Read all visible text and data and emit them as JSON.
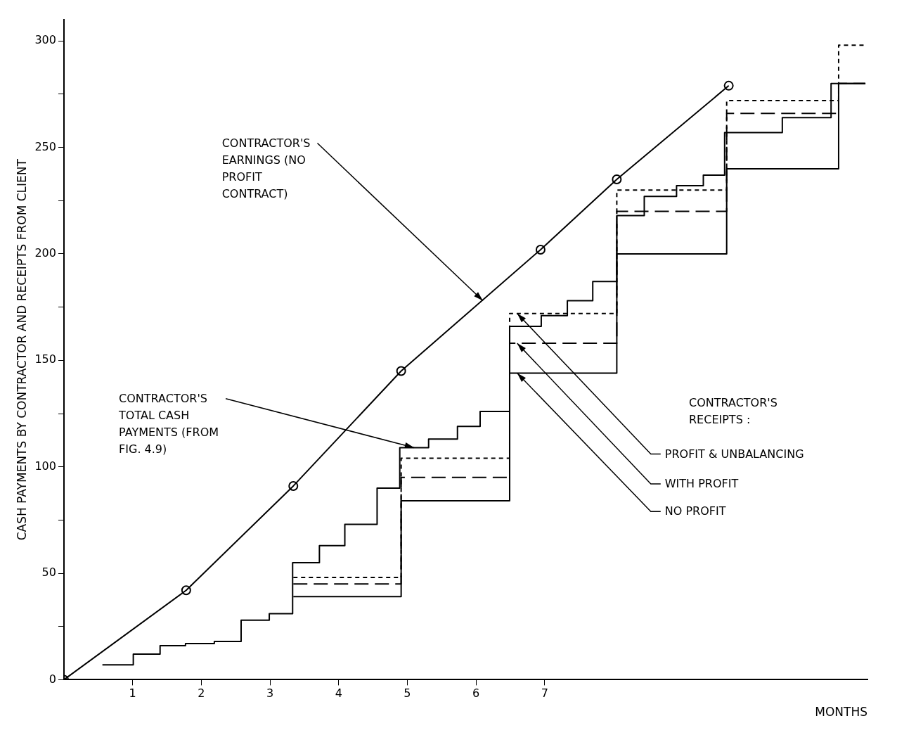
{
  "chart_data": {
    "type": "step",
    "xlabel": "MONTHS",
    "ylabel": "CASH PAYMENTS BY CONTRACTOR AND RECEIPTS FROM CLIENT",
    "legend_title": "CONTRACTOR'S RECEIPTS :",
    "xlim": [
      0,
      11.7
    ],
    "ylim": [
      0,
      310
    ],
    "xticks": [
      1,
      2,
      3,
      4,
      5,
      6,
      7
    ],
    "yticks": [
      0,
      {
        "value": 25,
        "label": null
      },
      50,
      {
        "value": 75,
        "label": null
      },
      100,
      {
        "value": 125,
        "label": null
      },
      150,
      {
        "value": 175,
        "label": null
      },
      200,
      {
        "value": 225,
        "label": null
      },
      250,
      {
        "value": 275,
        "label": null
      },
      300
    ],
    "grid": false,
    "marker": "none",
    "annotations": [
      {
        "text": "CONTRACTOR'S EARNINGS (NO PROFIT CONTRACT)",
        "x": 6.1,
        "y": 178
      },
      {
        "text": "CONTRACTOR'S TOTAL CASH PAYMENTS (FROM FIG. 4.9)",
        "x": 5.1,
        "y": 109
      },
      {
        "text": "PROFIT & UNBALANCING",
        "x": 6.6,
        "y": 172
      },
      {
        "text": "WITH PROFIT",
        "x": 6.6,
        "y": 158
      },
      {
        "text": "NO PROFIT",
        "x": 6.6,
        "y": 144
      }
    ],
    "series": [
      {
        "type": "line",
        "marker": "circle",
        "line_style": "solid",
        "color": "#000000",
        "x": [
          0,
          1.78,
          3.34,
          4.91,
          6.94,
          8.05,
          9.68
        ],
        "values": [
          0,
          42,
          91,
          145,
          202,
          235,
          279
        ]
      },
      {
        "line_style": "solid",
        "color": "#000000",
        "x": [
          0.56,
          1.01,
          1.4,
          1.77,
          2.19,
          2.58,
          2.99,
          3.33,
          3.72,
          4.09,
          4.56,
          4.89,
          5.31,
          5.73,
          6.06,
          6.49,
          6.95,
          7.33,
          7.7,
          8.05,
          8.45,
          8.92,
          9.31,
          9.62,
          10.46,
          11.17,
          11.67
        ],
        "values": [
          7,
          12,
          16,
          17,
          18,
          28,
          31,
          55,
          63,
          73,
          90,
          109,
          113,
          119,
          126,
          166,
          171,
          178,
          187,
          218,
          227,
          232,
          237,
          257,
          264,
          280,
          280
        ]
      },
      {
        "line_style": "dotted",
        "color": "#000000",
        "x": [
          3.34,
          4.91,
          6.49,
          8.05,
          9.65,
          11.28,
          11.67
        ],
        "values": [
          48,
          104,
          172,
          230,
          272,
          298,
          298
        ]
      },
      {
        "line_style": "dashed",
        "color": "#000000",
        "x": [
          3.34,
          4.91,
          6.49,
          8.05,
          9.65,
          11.28,
          11.67
        ],
        "values": [
          45,
          95,
          158,
          220,
          266,
          280,
          280
        ]
      },
      {
        "line_style": "solid",
        "color": "#000000",
        "x": [
          3.34,
          4.91,
          6.49,
          8.05,
          9.65,
          11.28,
          11.67
        ],
        "values": [
          39,
          84,
          144,
          200,
          240,
          280,
          280
        ]
      }
    ]
  }
}
